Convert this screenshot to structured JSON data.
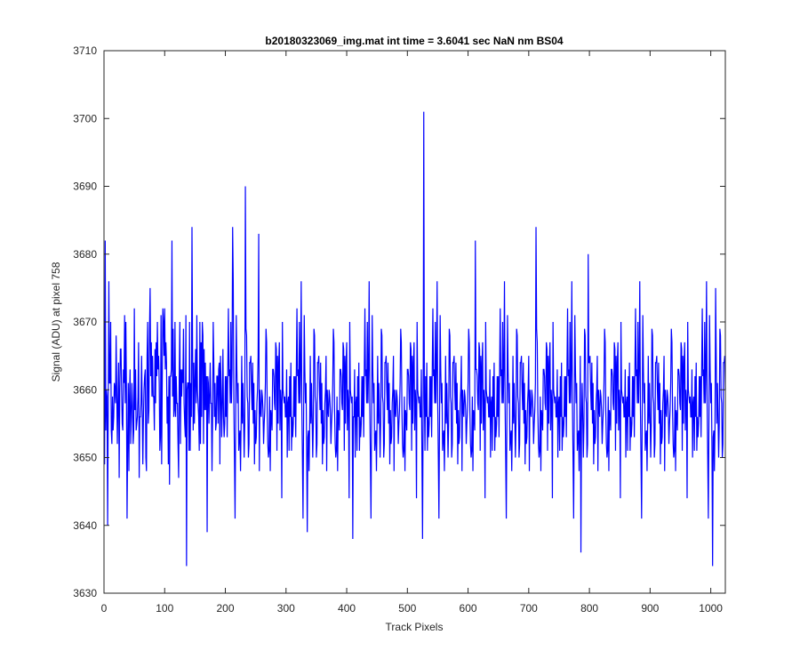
{
  "chart_data": {
    "type": "line",
    "title": "b20180323069_img.mat int time = 3.6041 sec  NaN nm BS04",
    "xlabel": "Track Pixels",
    "ylabel": "Signal (ADU) at pixel 758",
    "xlim": [
      0,
      1024
    ],
    "ylim": [
      3630,
      3710
    ],
    "xticks": [
      0,
      100,
      200,
      300,
      400,
      500,
      600,
      700,
      800,
      900,
      1000
    ],
    "yticks": [
      3630,
      3640,
      3650,
      3660,
      3670,
      3680,
      3690,
      3700,
      3710
    ],
    "grid": false,
    "line_color": "#0000ff",
    "series": [
      {
        "x_start": 1,
        "x_step": 1,
        "points_estimated": 1024,
        "mean": 3659,
        "std": 6.5,
        "highlights": [
          {
            "x": 2,
            "y": 3682
          },
          {
            "x": 6,
            "y": 3640
          },
          {
            "x": 76,
            "y": 3675
          },
          {
            "x": 112,
            "y": 3682
          },
          {
            "x": 136,
            "y": 3634
          },
          {
            "x": 145,
            "y": 3684
          },
          {
            "x": 170,
            "y": 3639
          },
          {
            "x": 212,
            "y": 3684
          },
          {
            "x": 233,
            "y": 3690
          },
          {
            "x": 255,
            "y": 3683
          },
          {
            "x": 335,
            "y": 3639
          },
          {
            "x": 410,
            "y": 3638
          },
          {
            "x": 525,
            "y": 3638
          },
          {
            "x": 527,
            "y": 3701
          },
          {
            "x": 612,
            "y": 3682
          },
          {
            "x": 712,
            "y": 3684
          },
          {
            "x": 786,
            "y": 3636
          },
          {
            "x": 798,
            "y": 3680
          },
          {
            "x": 1003,
            "y": 3634
          },
          {
            "x": 1008,
            "y": 3675
          }
        ]
      }
    ]
  }
}
